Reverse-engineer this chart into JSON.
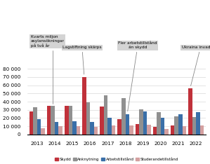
{
  "years": [
    2013,
    2014,
    2015,
    2016,
    2017,
    2018,
    2019,
    2020,
    2021,
    2022
  ],
  "skydd": [
    28000,
    35000,
    35000,
    70000,
    34000,
    19000,
    13000,
    9000,
    11000,
    56000
  ],
  "anknytning": [
    33000,
    35000,
    35000,
    39000,
    48000,
    44000,
    31000,
    27000,
    22000,
    21000
  ],
  "arbetstillstand": [
    19000,
    15000,
    16000,
    15000,
    20000,
    25000,
    28000,
    20000,
    25000,
    27000
  ],
  "studerandetillstand": [
    8000,
    10000,
    10000,
    9000,
    11000,
    11000,
    12000,
    7000,
    10000,
    11000
  ],
  "colors": {
    "skydd": "#c0313a",
    "anknytning": "#909090",
    "arbetstillstand": "#3a6fa8",
    "studerandetillstand": "#d4a0a0"
  },
  "ylim": [
    0,
    88000
  ],
  "yticks": [
    0,
    10000,
    20000,
    30000,
    40000,
    50000,
    60000,
    70000,
    80000
  ],
  "ytick_labels": [
    "0",
    "10 000",
    "20 000",
    "30 000",
    "40 000",
    "50 000",
    "60 000",
    "70 000",
    "80 000"
  ],
  "legend_labels": [
    "Skydd",
    "Anknytning",
    "Arbetstillstånd",
    "Studerandetillstånd"
  ],
  "background_color": "#ffffff",
  "ann_box_color": "#d0d0d0",
  "ann_fontsize": 4.2,
  "bar_width": 0.22
}
